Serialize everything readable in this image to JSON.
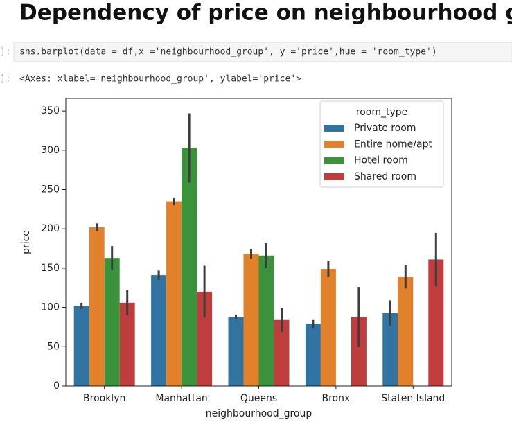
{
  "header": {
    "title": "Dependency of price on neighbourhood groups"
  },
  "cells": [
    {
      "prompt": "]:",
      "code": "sns.barplot(data = df,x ='neighbourhood_group', y ='price',hue = 'room_type')"
    },
    {
      "prompt": "]:",
      "output": "<Axes: xlabel='neighbourhood_group', ylabel='price'>"
    }
  ],
  "chart_data": {
    "type": "bar",
    "x_label": "neighbourhood_group",
    "y_label": "price",
    "legend_title": "room_type",
    "legend_position": "upper right",
    "categories": [
      "Brooklyn",
      "Manhattan",
      "Queens",
      "Bronx",
      "Staten Island"
    ],
    "series": [
      {
        "name": "Private room",
        "color": "#3274a1",
        "values": [
          102,
          141,
          88,
          79,
          93
        ],
        "errors": [
          4,
          6,
          3,
          5,
          16
        ]
      },
      {
        "name": "Entire home/apt",
        "color": "#e1812c",
        "values": [
          202,
          235,
          168,
          149,
          139
        ],
        "errors": [
          5,
          5,
          6,
          10,
          15
        ]
      },
      {
        "name": "Hotel room",
        "color": "#3a923a",
        "values": [
          163,
          303,
          166,
          null,
          null
        ],
        "errors": [
          15,
          44,
          16,
          null,
          null
        ]
      },
      {
        "name": "Shared room",
        "color": "#c03d3e",
        "values": [
          106,
          120,
          84,
          88,
          161
        ],
        "errors": [
          16,
          33,
          15,
          38,
          34
        ]
      }
    ],
    "ylim": [
      0,
      366
    ],
    "yticks": [
      0,
      50,
      100,
      150,
      200,
      250,
      300,
      350
    ]
  }
}
